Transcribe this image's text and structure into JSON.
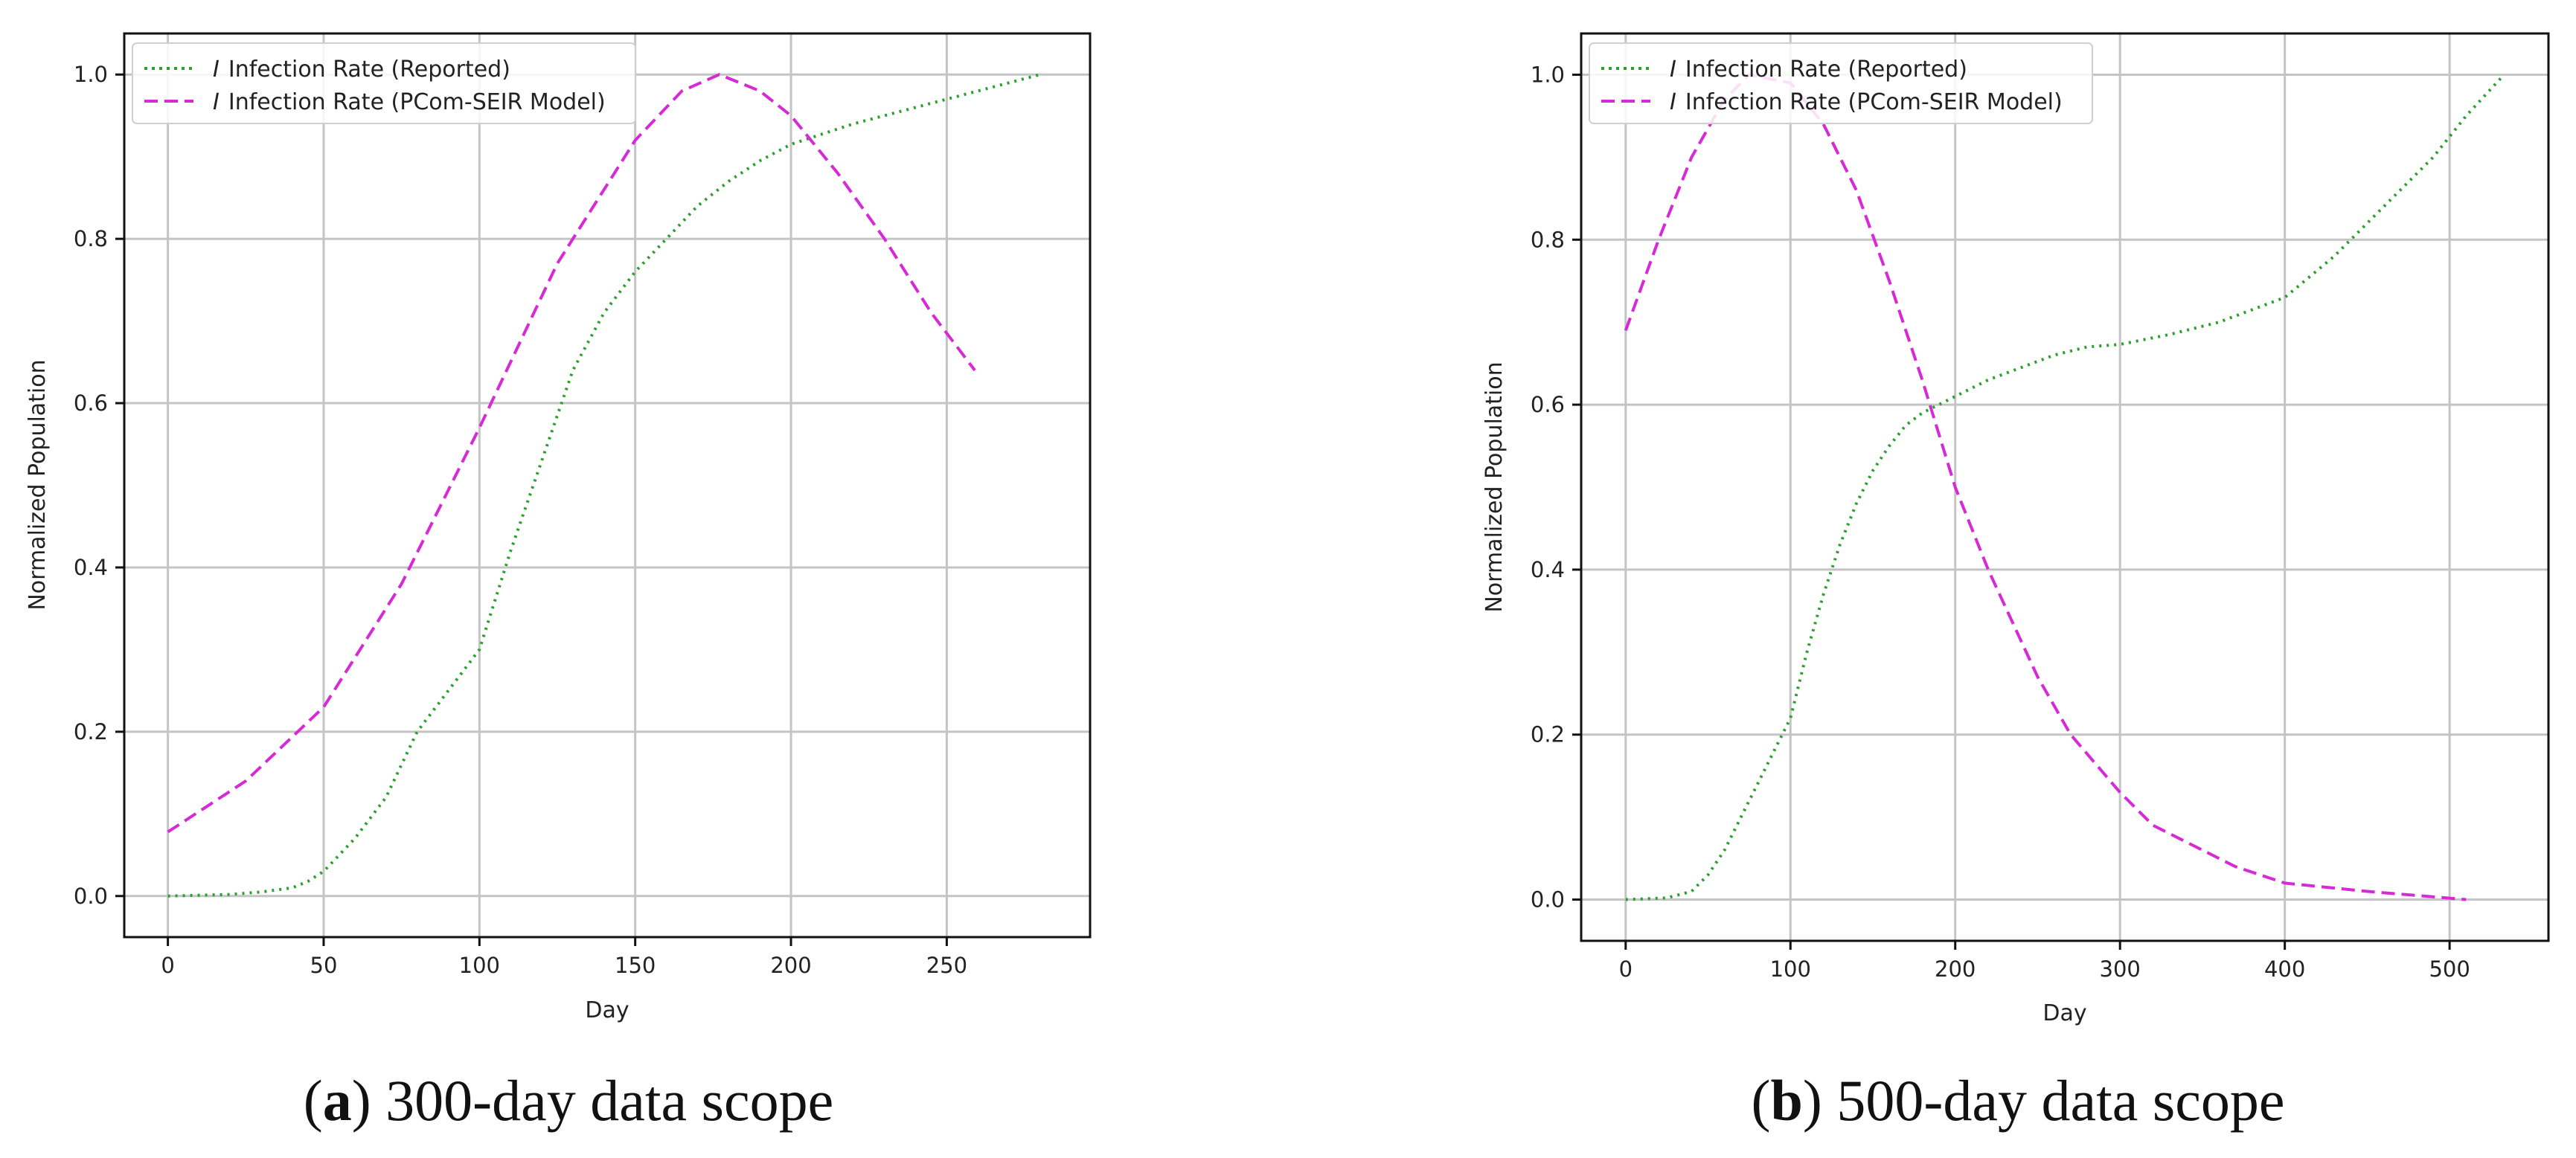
{
  "chart_data": [
    {
      "type": "line",
      "panel_letter": "a",
      "caption_text": " 300-day data scope",
      "xlabel": "Day",
      "ylabel": "Normalized Population",
      "xlim": [
        -14,
        296
      ],
      "ylim": [
        -0.05,
        1.05
      ],
      "xticks": [
        0,
        50,
        100,
        150,
        200,
        250
      ],
      "yticks": [
        0.0,
        0.2,
        0.4,
        0.6,
        0.8,
        1.0
      ],
      "xtick_labels": [
        "0",
        "50",
        "100",
        "150",
        "200",
        "250"
      ],
      "ytick_labels": [
        "0.0",
        "0.2",
        "0.4",
        "0.6",
        "0.8",
        "1.0"
      ],
      "grid": true,
      "legend_position": "upper-left",
      "series": [
        {
          "name": "Infection Rate (Reported)",
          "legend_symbol": "I",
          "color": "#2ca02c",
          "style": "dotted",
          "x": [
            0,
            20,
            30,
            40,
            45,
            50,
            60,
            70,
            80,
            90,
            100,
            110,
            120,
            130,
            140,
            150,
            160,
            170,
            180,
            190,
            200,
            220,
            240,
            260,
            280
          ],
          "y": [
            0.0,
            0.002,
            0.005,
            0.01,
            0.018,
            0.03,
            0.07,
            0.12,
            0.2,
            0.25,
            0.3,
            0.42,
            0.53,
            0.64,
            0.71,
            0.76,
            0.8,
            0.84,
            0.87,
            0.895,
            0.915,
            0.94,
            0.96,
            0.98,
            1.0
          ]
        },
        {
          "name": "Infection Rate (PCom-SEIR Model)",
          "legend_symbol": "I",
          "color": "#d62ad6",
          "style": "dashed",
          "x": [
            0,
            25,
            50,
            75,
            100,
            125,
            150,
            165,
            177,
            190,
            200,
            215,
            230,
            245,
            259
          ],
          "y": [
            0.078,
            0.14,
            0.23,
            0.38,
            0.57,
            0.77,
            0.92,
            0.98,
            1.0,
            0.98,
            0.95,
            0.88,
            0.8,
            0.71,
            0.64
          ]
        }
      ]
    },
    {
      "type": "line",
      "panel_letter": "b",
      "caption_text": " 500-day data scope",
      "xlabel": "Day",
      "ylabel": "Normalized Population",
      "xlim": [
        -27,
        560
      ],
      "ylim": [
        -0.05,
        1.05
      ],
      "xticks": [
        0,
        100,
        200,
        300,
        400,
        500
      ],
      "yticks": [
        0.0,
        0.2,
        0.4,
        0.6,
        0.8,
        1.0
      ],
      "xtick_labels": [
        "0",
        "100",
        "200",
        "300",
        "400",
        "500"
      ],
      "ytick_labels": [
        "0.0",
        "0.2",
        "0.4",
        "0.6",
        "0.8",
        "1.0"
      ],
      "grid": true,
      "legend_position": "upper-left",
      "series": [
        {
          "name": "Infection Rate (Reported)",
          "legend_symbol": "I",
          "color": "#2ca02c",
          "style": "dotted",
          "x": [
            0,
            25,
            40,
            50,
            60,
            70,
            80,
            90,
            100,
            110,
            120,
            130,
            140,
            150,
            160,
            170,
            180,
            200,
            220,
            240,
            260,
            280,
            300,
            330,
            360,
            400,
            430,
            460,
            490,
            510,
            533
          ],
          "y": [
            0.0,
            0.002,
            0.01,
            0.03,
            0.06,
            0.1,
            0.14,
            0.18,
            0.22,
            0.3,
            0.37,
            0.43,
            0.48,
            0.52,
            0.55,
            0.575,
            0.59,
            0.61,
            0.63,
            0.645,
            0.66,
            0.67,
            0.673,
            0.685,
            0.7,
            0.73,
            0.78,
            0.84,
            0.9,
            0.95,
            1.0
          ]
        },
        {
          "name": "Infection Rate (PCom-SEIR Model)",
          "legend_symbol": "I",
          "color": "#d62ad6",
          "style": "dashed",
          "x": [
            0,
            20,
            40,
            60,
            75,
            100,
            120,
            140,
            160,
            180,
            200,
            220,
            250,
            270,
            300,
            320,
            350,
            370,
            400,
            450,
            510
          ],
          "y": [
            0.69,
            0.8,
            0.9,
            0.97,
            1.0,
            0.99,
            0.94,
            0.86,
            0.75,
            0.63,
            0.5,
            0.4,
            0.27,
            0.2,
            0.13,
            0.09,
            0.06,
            0.04,
            0.02,
            0.01,
            0.0
          ]
        }
      ]
    }
  ]
}
